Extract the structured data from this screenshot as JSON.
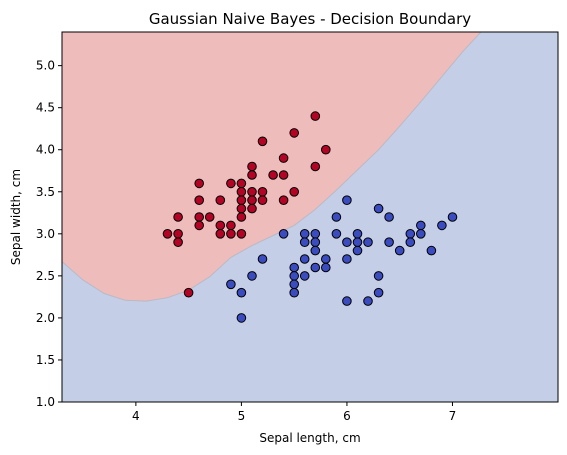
{
  "chart_data": {
    "type": "scatter",
    "title": "Gaussian Naive Bayes - Decision Boundary",
    "xlabel": "Sepal length, cm",
    "ylabel": "Sepal width, cm",
    "xlim": [
      3.3,
      8.0
    ],
    "ylim": [
      1.0,
      5.4
    ],
    "xticks": [
      "4",
      "5",
      "6",
      "7"
    ],
    "xtick_values": [
      4,
      5,
      6,
      7
    ],
    "yticks": [
      "1.0",
      "1.5",
      "2.0",
      "2.5",
      "3.0",
      "3.5",
      "4.0",
      "4.5",
      "5.0"
    ],
    "ytick_values": [
      1.0,
      1.5,
      2.0,
      2.5,
      3.0,
      3.5,
      4.0,
      4.5,
      5.0
    ],
    "grid": false,
    "legend": "none",
    "regions": [
      {
        "class": "red",
        "color": "#efbcbc",
        "side": "upper-left"
      },
      {
        "class": "blue",
        "color": "#c4cfe7",
        "side": "lower-right"
      }
    ],
    "boundary": [
      [
        3.3,
        2.67
      ],
      [
        3.5,
        2.45
      ],
      [
        3.7,
        2.29
      ],
      [
        3.9,
        2.21
      ],
      [
        4.1,
        2.2
      ],
      [
        4.3,
        2.24
      ],
      [
        4.5,
        2.33
      ],
      [
        4.7,
        2.49
      ],
      [
        4.9,
        2.72
      ],
      [
        5.1,
        2.86
      ],
      [
        5.3,
        2.98
      ],
      [
        5.5,
        3.1
      ],
      [
        5.7,
        3.29
      ],
      [
        5.9,
        3.52
      ],
      [
        6.1,
        3.76
      ],
      [
        6.3,
        4.0
      ],
      [
        6.5,
        4.28
      ],
      [
        6.7,
        4.57
      ],
      [
        6.9,
        4.87
      ],
      [
        7.1,
        5.17
      ],
      [
        7.27,
        5.4
      ]
    ],
    "series": [
      {
        "color": "#b40426",
        "points": [
          [
            4.3,
            3.0
          ],
          [
            4.4,
            3.2
          ],
          [
            4.4,
            3.0
          ],
          [
            4.4,
            2.9
          ],
          [
            4.5,
            2.3
          ],
          [
            4.6,
            3.6
          ],
          [
            4.6,
            3.4
          ],
          [
            4.6,
            3.2
          ],
          [
            4.6,
            3.1
          ],
          [
            4.7,
            3.2
          ],
          [
            4.8,
            3.4
          ],
          [
            4.8,
            3.1
          ],
          [
            4.8,
            3.0
          ],
          [
            4.9,
            3.6
          ],
          [
            4.9,
            3.1
          ],
          [
            4.9,
            3.0
          ],
          [
            5.0,
            3.6
          ],
          [
            5.0,
            3.5
          ],
          [
            5.0,
            3.4
          ],
          [
            5.0,
            3.3
          ],
          [
            5.0,
            3.2
          ],
          [
            5.0,
            3.0
          ],
          [
            5.1,
            3.8
          ],
          [
            5.1,
            3.7
          ],
          [
            5.1,
            3.5
          ],
          [
            5.1,
            3.4
          ],
          [
            5.1,
            3.3
          ],
          [
            5.2,
            4.1
          ],
          [
            5.2,
            3.5
          ],
          [
            5.2,
            3.4
          ],
          [
            5.3,
            3.7
          ],
          [
            5.4,
            3.9
          ],
          [
            5.4,
            3.7
          ],
          [
            5.4,
            3.4
          ],
          [
            5.5,
            4.2
          ],
          [
            5.5,
            3.5
          ],
          [
            5.7,
            4.4
          ],
          [
            5.7,
            3.8
          ],
          [
            5.8,
            4.0
          ]
        ]
      },
      {
        "color": "#3b4cc0",
        "points": [
          [
            4.9,
            2.4
          ],
          [
            5.0,
            2.3
          ],
          [
            5.0,
            2.0
          ],
          [
            5.1,
            2.5
          ],
          [
            5.2,
            2.7
          ],
          [
            5.4,
            3.0
          ],
          [
            5.5,
            2.6
          ],
          [
            5.5,
            2.5
          ],
          [
            5.5,
            2.4
          ],
          [
            5.5,
            2.3
          ],
          [
            5.6,
            3.0
          ],
          [
            5.6,
            2.9
          ],
          [
            5.6,
            2.7
          ],
          [
            5.6,
            2.5
          ],
          [
            5.7,
            3.0
          ],
          [
            5.7,
            2.9
          ],
          [
            5.7,
            2.8
          ],
          [
            5.7,
            2.6
          ],
          [
            5.8,
            2.7
          ],
          [
            5.8,
            2.6
          ],
          [
            5.9,
            3.2
          ],
          [
            5.9,
            3.0
          ],
          [
            6.0,
            3.4
          ],
          [
            6.0,
            2.9
          ],
          [
            6.0,
            2.7
          ],
          [
            6.0,
            2.2
          ],
          [
            6.1,
            3.0
          ],
          [
            6.1,
            2.9
          ],
          [
            6.1,
            2.8
          ],
          [
            6.2,
            2.9
          ],
          [
            6.2,
            2.2
          ],
          [
            6.3,
            3.3
          ],
          [
            6.3,
            2.5
          ],
          [
            6.3,
            2.3
          ],
          [
            6.4,
            3.2
          ],
          [
            6.4,
            2.9
          ],
          [
            6.5,
            2.8
          ],
          [
            6.6,
            3.0
          ],
          [
            6.6,
            2.9
          ],
          [
            6.7,
            3.1
          ],
          [
            6.7,
            3.0
          ],
          [
            6.8,
            2.8
          ],
          [
            6.9,
            3.1
          ],
          [
            7.0,
            3.2
          ]
        ]
      }
    ]
  }
}
